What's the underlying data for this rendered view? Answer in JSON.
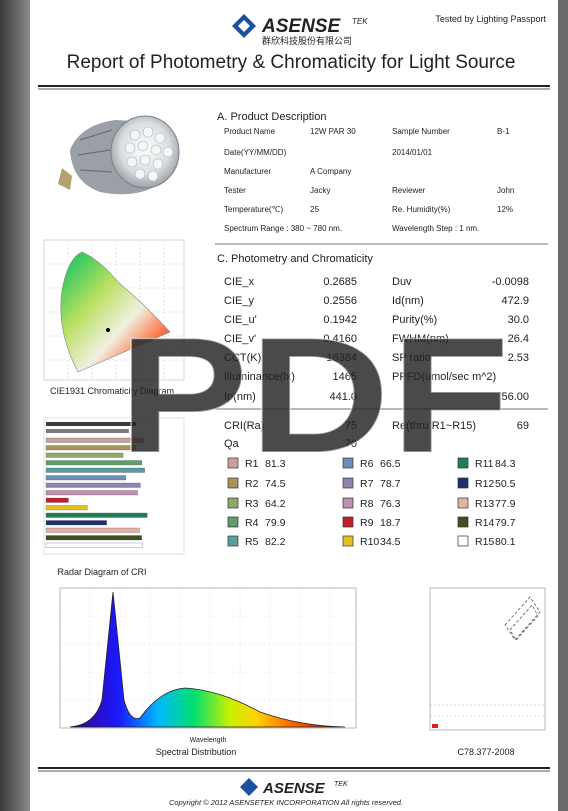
{
  "header": {
    "logo_text": "ASENSE",
    "logo_suffix": "TEK",
    "logo_chinese": "群欣科技股份有限公司",
    "tagline": "Tested by Lighting Passport",
    "title": "Report of Photometry & Chromaticity for Light Source"
  },
  "product": {
    "section_title": "A. Product Description",
    "rows": [
      {
        "left": {
          "label": "Product Name",
          "value": "12W PAR 30"
        },
        "right": {
          "label": "Sample Number",
          "value": "B-1"
        }
      },
      {
        "left": {
          "label": "Date(YY/MM/DD)"
        },
        "right": {
          "label": "2014/01/01"
        }
      },
      {
        "left": {
          "label": "Manufacturer",
          "value": "A Company"
        }
      },
      {
        "left": {
          "label": "Tester",
          "value": "Jacky"
        },
        "right": {
          "label": "Reviewer",
          "value": "John"
        }
      },
      {
        "left": {
          "label": "Temperature(℃)",
          "value": "25"
        },
        "right": {
          "label": "Re. Humidity(%)",
          "value": "12%"
        }
      },
      {
        "left": {
          "label": "Spectrum Range : 380 ~ 780 nm."
        },
        "right": {
          "label": "Wavelength Step : 1 nm."
        }
      }
    ]
  },
  "photometry": {
    "section_title": "C. Photometry and Chromaticity",
    "rows": [
      {
        "left": {
          "label": "CIE_x",
          "value": "0.2685"
        },
        "right": {
          "label": "Duv",
          "value": "-0.0098"
        }
      },
      {
        "left": {
          "label": "CIE_y",
          "value": "0.2556"
        },
        "right": {
          "label": "Id(nm)",
          "value": "472.9"
        }
      },
      {
        "left": {
          "label": "CIE_u'",
          "value": "0.1942"
        },
        "right": {
          "label": "Purity(%)",
          "value": "30.0"
        }
      },
      {
        "left": {
          "label": "CIE_v'",
          "value": "0.4160"
        },
        "right": {
          "label": "FWHM(nm)",
          "value": "26.4"
        }
      },
      {
        "left": {
          "label": "CCT(K)",
          "value": "16384"
        },
        "right": {
          "label": "SP ratio",
          "value": "2.53"
        }
      },
      {
        "left": {
          "label": "Illuminance(lx)",
          "value": "1465"
        },
        "right": {
          "label": "PPFD(umol/sec m^2)"
        }
      },
      {
        "left": {
          "label": "Ip(nm)",
          "value": "441.0"
        },
        "right": {
          "value": "56.00"
        }
      }
    ]
  },
  "cri": {
    "ra_label": "CRI(Ra)",
    "ra_value": 75,
    "re_label": "Re(thru R1~R15)",
    "re_value": 69,
    "qa_label": "Qa",
    "qa_value": 70,
    "items": [
      {
        "name": "R1",
        "value": 81.3,
        "color": "#c9a19a"
      },
      {
        "name": "R2",
        "value": 74.5,
        "color": "#a8955c"
      },
      {
        "name": "R3",
        "value": 64.2,
        "color": "#8fa86b"
      },
      {
        "name": "R4",
        "value": 79.9,
        "color": "#5e9e6c"
      },
      {
        "name": "R5",
        "value": 82.2,
        "color": "#5a9c9e"
      },
      {
        "name": "R6",
        "value": 66.5,
        "color": "#6f8fbb"
      },
      {
        "name": "R7",
        "value": 78.7,
        "color": "#9482b3"
      },
      {
        "name": "R8",
        "value": 76.3,
        "color": "#c18fb2"
      },
      {
        "name": "R9",
        "value": 18.7,
        "color": "#c0202e"
      },
      {
        "name": "R10",
        "value": 34.5,
        "color": "#e3c21e"
      },
      {
        "name": "R11",
        "value": 84.3,
        "color": "#1f7d5c"
      },
      {
        "name": "R12",
        "value": 50.5,
        "color": "#1e2f72"
      },
      {
        "name": "R13",
        "value": 77.9,
        "color": "#e2b3a2"
      },
      {
        "name": "R14",
        "value": 79.7,
        "color": "#3f4f22"
      },
      {
        "name": "R15",
        "value": 80.1,
        "color": "#ffffff"
      }
    ]
  },
  "captions": {
    "cie": "CIE1931 Chromaticity Diagram",
    "radar": "Radar Diagram of CRI",
    "spectrum": "Spectral Distribution",
    "wavelength": "Wavelength",
    "ansi": "C78.377-2008"
  },
  "watermark": "PDF",
  "footer": {
    "logo_text": "ASENSE",
    "logo_suffix": "TEK",
    "copyright": "Copyright © 2012 ASENSETEK INCORPORATION All rights reserved."
  }
}
